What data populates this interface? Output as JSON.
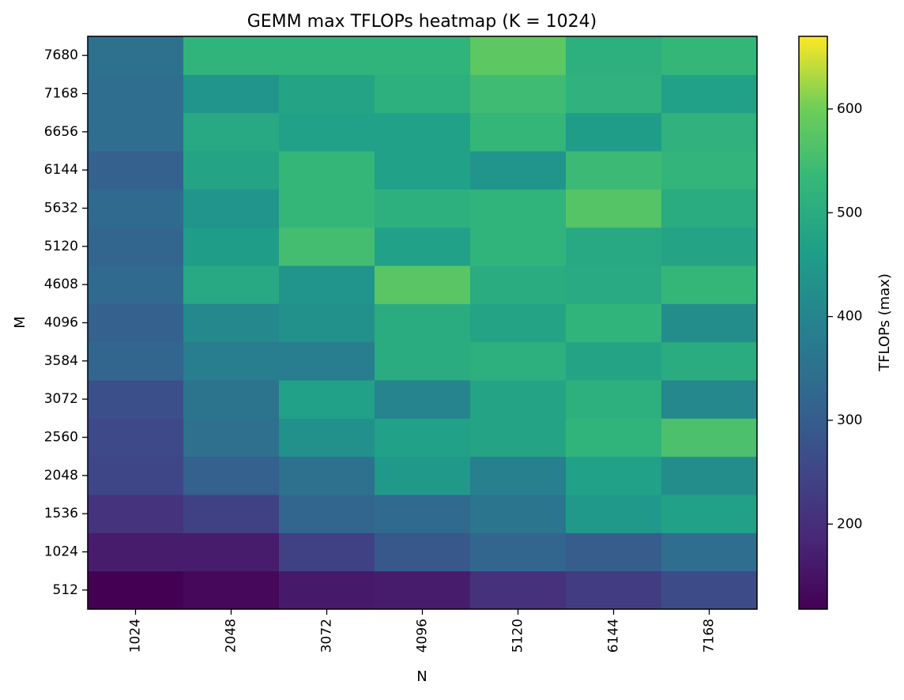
{
  "chart_data": {
    "type": "heatmap",
    "title": "GEMM max TFLOPs heatmap (K = 1024)",
    "xlabel": "N",
    "ylabel": "M",
    "x": [
      "1024",
      "2048",
      "3072",
      "4096",
      "5120",
      "6144",
      "7168"
    ],
    "y": [
      "512",
      "1024",
      "1536",
      "2048",
      "2560",
      "3072",
      "3584",
      "4096",
      "4608",
      "5120",
      "5632",
      "6144",
      "6656",
      "7168",
      "7680"
    ],
    "values": [
      [
        118,
        130,
        160,
        165,
        205,
        230,
        260
      ],
      [
        165,
        165,
        240,
        290,
        320,
        300,
        340
      ],
      [
        210,
        240,
        320,
        330,
        360,
        450,
        470
      ],
      [
        250,
        310,
        350,
        450,
        390,
        470,
        420
      ],
      [
        255,
        345,
        430,
        470,
        480,
        520,
        560
      ],
      [
        270,
        355,
        470,
        400,
        480,
        510,
        410
      ],
      [
        320,
        380,
        380,
        500,
        510,
        480,
        500
      ],
      [
        310,
        410,
        430,
        500,
        480,
        520,
        420
      ],
      [
        330,
        490,
        440,
        575,
        500,
        495,
        530
      ],
      [
        320,
        460,
        550,
        470,
        520,
        490,
        480
      ],
      [
        330,
        440,
        530,
        510,
        520,
        570,
        500
      ],
      [
        310,
        480,
        530,
        470,
        440,
        540,
        525
      ],
      [
        340,
        490,
        470,
        470,
        530,
        460,
        515
      ],
      [
        340,
        440,
        480,
        510,
        545,
        515,
        470
      ],
      [
        350,
        520,
        520,
        520,
        580,
        510,
        530
      ]
    ],
    "colorbar": {
      "label": "TFLOPs (max)",
      "min": 118,
      "max": 670,
      "ticks": [
        200,
        300,
        400,
        500,
        600
      ],
      "colormap": "viridis"
    }
  }
}
